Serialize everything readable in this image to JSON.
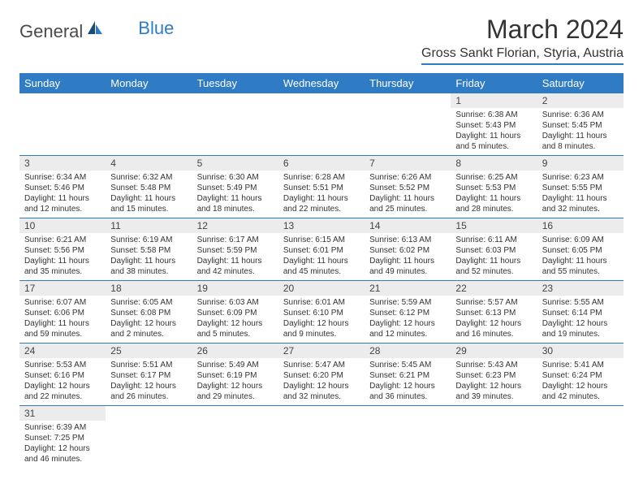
{
  "logo": {
    "text1": "General",
    "text2": "Blue"
  },
  "title": "March 2024",
  "location": "Gross Sankt Florian, Styria, Austria",
  "headers": [
    "Sunday",
    "Monday",
    "Tuesday",
    "Wednesday",
    "Thursday",
    "Friday",
    "Saturday"
  ],
  "colors": {
    "primary": "#2f7cc4",
    "daynum_bg": "#ececec",
    "text": "#333333"
  },
  "weeks": [
    [
      null,
      null,
      null,
      null,
      null,
      {
        "n": "1",
        "sunrise": "6:38 AM",
        "sunset": "5:43 PM",
        "daylight": "11 hours and 5 minutes."
      },
      {
        "n": "2",
        "sunrise": "6:36 AM",
        "sunset": "5:45 PM",
        "daylight": "11 hours and 8 minutes."
      }
    ],
    [
      {
        "n": "3",
        "sunrise": "6:34 AM",
        "sunset": "5:46 PM",
        "daylight": "11 hours and 12 minutes."
      },
      {
        "n": "4",
        "sunrise": "6:32 AM",
        "sunset": "5:48 PM",
        "daylight": "11 hours and 15 minutes."
      },
      {
        "n": "5",
        "sunrise": "6:30 AM",
        "sunset": "5:49 PM",
        "daylight": "11 hours and 18 minutes."
      },
      {
        "n": "6",
        "sunrise": "6:28 AM",
        "sunset": "5:51 PM",
        "daylight": "11 hours and 22 minutes."
      },
      {
        "n": "7",
        "sunrise": "6:26 AM",
        "sunset": "5:52 PM",
        "daylight": "11 hours and 25 minutes."
      },
      {
        "n": "8",
        "sunrise": "6:25 AM",
        "sunset": "5:53 PM",
        "daylight": "11 hours and 28 minutes."
      },
      {
        "n": "9",
        "sunrise": "6:23 AM",
        "sunset": "5:55 PM",
        "daylight": "11 hours and 32 minutes."
      }
    ],
    [
      {
        "n": "10",
        "sunrise": "6:21 AM",
        "sunset": "5:56 PM",
        "daylight": "11 hours and 35 minutes."
      },
      {
        "n": "11",
        "sunrise": "6:19 AM",
        "sunset": "5:58 PM",
        "daylight": "11 hours and 38 minutes."
      },
      {
        "n": "12",
        "sunrise": "6:17 AM",
        "sunset": "5:59 PM",
        "daylight": "11 hours and 42 minutes."
      },
      {
        "n": "13",
        "sunrise": "6:15 AM",
        "sunset": "6:01 PM",
        "daylight": "11 hours and 45 minutes."
      },
      {
        "n": "14",
        "sunrise": "6:13 AM",
        "sunset": "6:02 PM",
        "daylight": "11 hours and 49 minutes."
      },
      {
        "n": "15",
        "sunrise": "6:11 AM",
        "sunset": "6:03 PM",
        "daylight": "11 hours and 52 minutes."
      },
      {
        "n": "16",
        "sunrise": "6:09 AM",
        "sunset": "6:05 PM",
        "daylight": "11 hours and 55 minutes."
      }
    ],
    [
      {
        "n": "17",
        "sunrise": "6:07 AM",
        "sunset": "6:06 PM",
        "daylight": "11 hours and 59 minutes."
      },
      {
        "n": "18",
        "sunrise": "6:05 AM",
        "sunset": "6:08 PM",
        "daylight": "12 hours and 2 minutes."
      },
      {
        "n": "19",
        "sunrise": "6:03 AM",
        "sunset": "6:09 PM",
        "daylight": "12 hours and 5 minutes."
      },
      {
        "n": "20",
        "sunrise": "6:01 AM",
        "sunset": "6:10 PM",
        "daylight": "12 hours and 9 minutes."
      },
      {
        "n": "21",
        "sunrise": "5:59 AM",
        "sunset": "6:12 PM",
        "daylight": "12 hours and 12 minutes."
      },
      {
        "n": "22",
        "sunrise": "5:57 AM",
        "sunset": "6:13 PM",
        "daylight": "12 hours and 16 minutes."
      },
      {
        "n": "23",
        "sunrise": "5:55 AM",
        "sunset": "6:14 PM",
        "daylight": "12 hours and 19 minutes."
      }
    ],
    [
      {
        "n": "24",
        "sunrise": "5:53 AM",
        "sunset": "6:16 PM",
        "daylight": "12 hours and 22 minutes."
      },
      {
        "n": "25",
        "sunrise": "5:51 AM",
        "sunset": "6:17 PM",
        "daylight": "12 hours and 26 minutes."
      },
      {
        "n": "26",
        "sunrise": "5:49 AM",
        "sunset": "6:19 PM",
        "daylight": "12 hours and 29 minutes."
      },
      {
        "n": "27",
        "sunrise": "5:47 AM",
        "sunset": "6:20 PM",
        "daylight": "12 hours and 32 minutes."
      },
      {
        "n": "28",
        "sunrise": "5:45 AM",
        "sunset": "6:21 PM",
        "daylight": "12 hours and 36 minutes."
      },
      {
        "n": "29",
        "sunrise": "5:43 AM",
        "sunset": "6:23 PM",
        "daylight": "12 hours and 39 minutes."
      },
      {
        "n": "30",
        "sunrise": "5:41 AM",
        "sunset": "6:24 PM",
        "daylight": "12 hours and 42 minutes."
      }
    ],
    [
      {
        "n": "31",
        "sunrise": "6:39 AM",
        "sunset": "7:25 PM",
        "daylight": "12 hours and 46 minutes."
      },
      null,
      null,
      null,
      null,
      null,
      null
    ]
  ],
  "labels": {
    "sunrise": "Sunrise:",
    "sunset": "Sunset:",
    "daylight": "Daylight:"
  }
}
